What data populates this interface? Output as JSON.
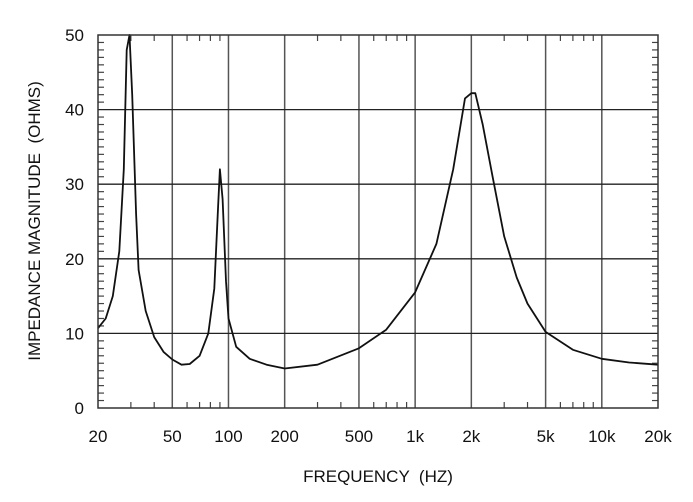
{
  "chart_data": {
    "type": "line",
    "title": "",
    "xlabel": "FREQUENCY  (HZ)",
    "ylabel": "IMPEDANCE MAGNITUDE  (OHMS)",
    "xscale": "log",
    "xlim": [
      20,
      20000
    ],
    "ylim": [
      0,
      50
    ],
    "grid": true,
    "x_ticks": [
      20,
      50,
      100,
      200,
      500,
      1000,
      2000,
      5000,
      10000,
      20000
    ],
    "x_tick_labels": [
      "20",
      "50",
      "100",
      "200",
      "500",
      "1k",
      "2k",
      "5k",
      "10k",
      "20k"
    ],
    "y_ticks": [
      0,
      10,
      20,
      30,
      40,
      50
    ],
    "y_tick_labels": [
      "0",
      "10",
      "20",
      "30",
      "40",
      "50"
    ],
    "series": [
      {
        "name": "Impedance",
        "x": [
          20,
          22,
          24,
          26,
          27.5,
          28.5,
          29.5,
          30.5,
          32,
          33,
          36,
          40,
          45,
          50,
          56,
          62,
          70,
          78,
          84,
          88,
          90,
          93,
          97,
          100,
          110,
          130,
          160,
          200,
          300,
          500,
          700,
          1000,
          1300,
          1600,
          1850,
          2000,
          2100,
          2300,
          2600,
          3000,
          3500,
          4000,
          5000,
          7000,
          10000,
          14000,
          20000
        ],
        "y": [
          10.7,
          12,
          15,
          21,
          32,
          48,
          50,
          42,
          26,
          18.5,
          13,
          9.5,
          7.5,
          6.5,
          5.8,
          5.9,
          7,
          10,
          16,
          27,
          32,
          28,
          17,
          12,
          8.2,
          6.6,
          5.8,
          5.3,
          5.8,
          8,
          10.5,
          15.5,
          22,
          32,
          41.5,
          42.2,
          42.2,
          38,
          31,
          23,
          17.5,
          14,
          10.2,
          7.8,
          6.6,
          6.1,
          5.8
        ]
      }
    ]
  }
}
